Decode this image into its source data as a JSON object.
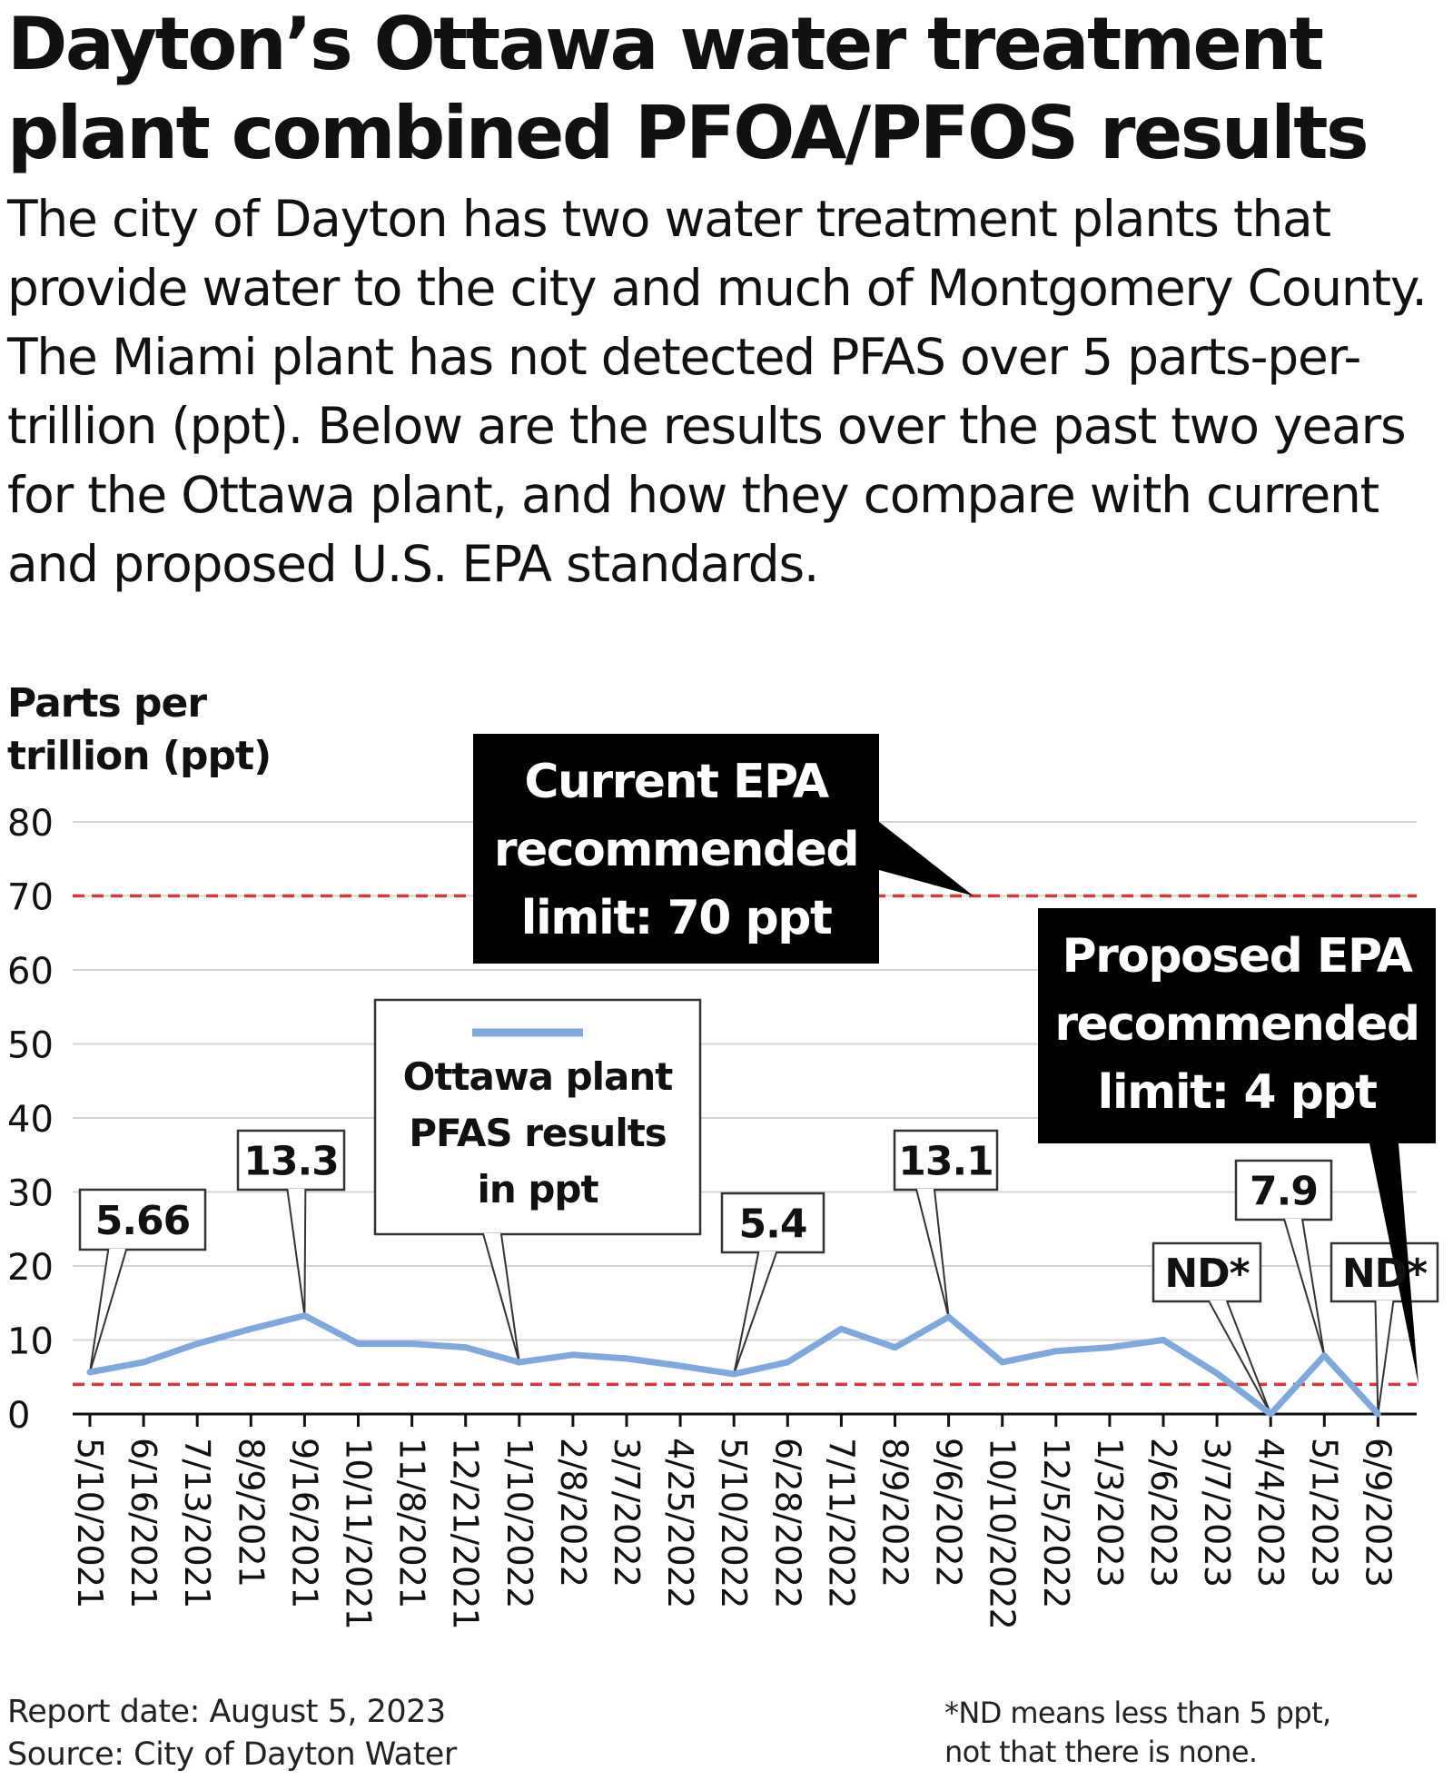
{
  "title_lines": [
    "Dayton’s Ottawa water treatment",
    "plant combined PFOA/PFOS results"
  ],
  "subtitle": "The city of Dayton has two water treatment plants that provide water to the city and much of Montgomery County. The Miami plant has not detected PFAS over 5 parts-per-trillion (ppt). Below are the results over the past two years for the Ottawa plant, and how they compare with current and proposed U.S. EPA standards.",
  "colors": {
    "series": "#7fa8de",
    "limit_line": "#d9383a",
    "annotation_bg": "#000000",
    "grid": "#d4d4d4"
  },
  "chart_data": {
    "type": "line",
    "ylabel_lines": [
      "Parts per",
      "trillion (ppt)"
    ],
    "ylim": [
      0,
      80
    ],
    "yticks": [
      0,
      10,
      20,
      30,
      40,
      50,
      60,
      70,
      80
    ],
    "grid": true,
    "categories": [
      "5/10/2021",
      "6/16/2021",
      "7/13/2021",
      "8/9/2021",
      "9/16/2021",
      "10/11/2021",
      "11/8/2021",
      "12/21/2021",
      "1/10/2022",
      "2/8/2022",
      "3/7/2022",
      "4/25/2022",
      "5/10/2022",
      "6/28/2022",
      "7/11/2022",
      "8/9/2022",
      "9/6/2022",
      "10/10/2022",
      "12/5/2022",
      "1/3/2023",
      "2/6/2023",
      "3/7/2023",
      "4/4/2023",
      "5/1/2023",
      "6/9/2023"
    ],
    "series": [
      {
        "name_lines": [
          "Ottawa plant",
          "PFAS results",
          "in ppt"
        ],
        "values": [
          5.66,
          7,
          9.5,
          11.5,
          13.3,
          9.5,
          9.5,
          9,
          7,
          8,
          7.5,
          6.5,
          5.4,
          7,
          11.5,
          9,
          13.1,
          7,
          8.5,
          9,
          10,
          5.5,
          0,
          7.9,
          0
        ]
      }
    ],
    "data_labels": [
      {
        "index": 0,
        "text": "5.66"
      },
      {
        "index": 4,
        "text": "13.3"
      },
      {
        "index": 12,
        "text": "5.4"
      },
      {
        "index": 16,
        "text": "13.1"
      },
      {
        "index": 22,
        "text": "ND*"
      },
      {
        "index": 23,
        "text": "7.9"
      },
      {
        "index": 24,
        "text": "ND*"
      }
    ],
    "reference_lines": [
      {
        "value": 70,
        "label_lines": [
          "Current EPA",
          "recommended",
          "limit: 70 ppt"
        ]
      },
      {
        "value": 4,
        "label_lines": [
          "Proposed EPA",
          "recommended",
          "limit: 4 ppt"
        ]
      }
    ]
  },
  "footer": {
    "report_date": "Report date: August 5, 2023",
    "source": "Source: City of Dayton Water",
    "note_lines": [
      "*ND means less than 5 ppt,",
      "not that there is none."
    ]
  }
}
